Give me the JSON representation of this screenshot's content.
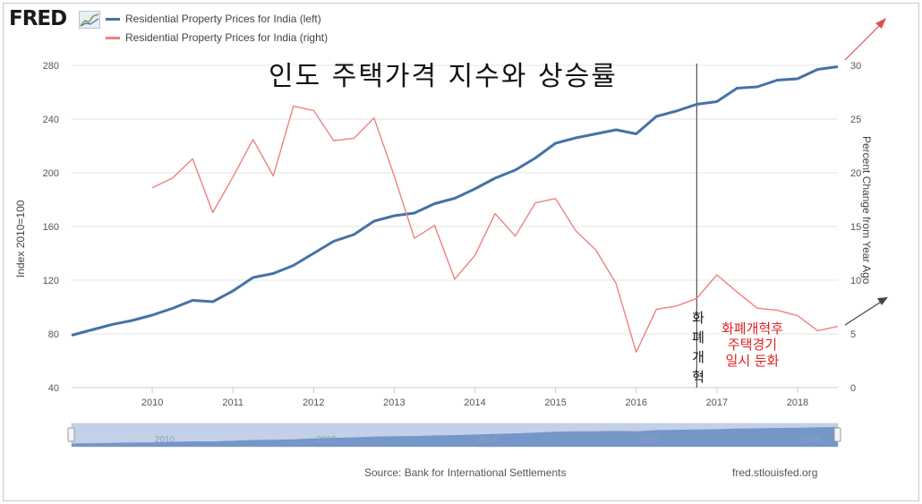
{
  "header": {
    "logo": "FRED"
  },
  "legend": [
    {
      "label": "Residential Property Prices for India (left)",
      "color": "#4572a7"
    },
    {
      "label": "Residential Property Prices for India (right)",
      "color": "#f08080"
    }
  ],
  "overlay": {
    "title": "인도 주택가격 지수와 상승률",
    "vertical_label": [
      "화",
      "폐",
      "개",
      "혁"
    ],
    "annotation": [
      "화폐개혁후",
      "주택경기",
      "일시 둔화"
    ],
    "annotation_color": "#e02020"
  },
  "chart_data": {
    "type": "line",
    "title": "Residential Property Prices for India",
    "ylabel_left": "Index 2010=100",
    "ylabel_right": "Percent Change from Year Ago",
    "ylim_left": [
      40,
      280
    ],
    "yticks_left": [
      40,
      80,
      120,
      160,
      200,
      240,
      280
    ],
    "ylim_right": [
      0,
      30
    ],
    "yticks_right": [
      0,
      5,
      10,
      15,
      20,
      25,
      30
    ],
    "xlim": [
      2009.0,
      2018.5
    ],
    "xticks": [
      2010,
      2011,
      2012,
      2013,
      2014,
      2015,
      2016,
      2017,
      2018
    ],
    "event_line_x": 2016.75,
    "series": [
      {
        "name": "Residential Property Prices for India (left)",
        "axis": "left",
        "color": "#4572a7",
        "x": [
          2009.0,
          2009.25,
          2009.5,
          2009.75,
          2010.0,
          2010.25,
          2010.5,
          2010.75,
          2011.0,
          2011.25,
          2011.5,
          2011.75,
          2012.0,
          2012.25,
          2012.5,
          2012.75,
          2013.0,
          2013.25,
          2013.5,
          2013.75,
          2014.0,
          2014.25,
          2014.5,
          2014.75,
          2015.0,
          2015.25,
          2015.5,
          2015.75,
          2016.0,
          2016.25,
          2016.5,
          2016.75,
          2017.0,
          2017.25,
          2017.5,
          2017.75,
          2018.0,
          2018.25,
          2018.5
        ],
        "values": [
          79,
          83,
          87,
          90,
          94,
          99,
          105,
          104,
          112,
          122,
          125,
          131,
          140,
          149,
          154,
          164,
          168,
          170,
          177,
          181,
          188,
          196,
          202,
          211,
          222,
          226,
          229,
          232,
          229,
          242,
          246,
          251,
          253,
          263,
          264,
          269,
          270,
          277,
          279
        ]
      },
      {
        "name": "Residential Property Prices for India (right)",
        "axis": "right",
        "color": "#f08080",
        "x": [
          2010.0,
          2010.25,
          2010.5,
          2010.75,
          2011.0,
          2011.25,
          2011.5,
          2011.75,
          2012.0,
          2012.25,
          2012.5,
          2012.75,
          2013.0,
          2013.25,
          2013.5,
          2013.75,
          2014.0,
          2014.25,
          2014.5,
          2014.75,
          2015.0,
          2015.25,
          2015.5,
          2015.75,
          2016.0,
          2016.25,
          2016.5,
          2016.75,
          2017.0,
          2017.25,
          2017.5,
          2017.75,
          2018.0,
          2018.25,
          2018.5
        ],
        "values": [
          18.6,
          19.5,
          21.3,
          16.3,
          19.6,
          23.1,
          19.7,
          26.2,
          25.8,
          23.0,
          23.2,
          25.1,
          19.7,
          13.9,
          15.1,
          10.1,
          12.3,
          16.2,
          14.1,
          17.2,
          17.6,
          14.6,
          12.8,
          9.7,
          3.3,
          7.3,
          7.6,
          8.3,
          10.5,
          8.9,
          7.4,
          7.2,
          6.7,
          5.3,
          5.7
        ]
      }
    ]
  },
  "footer": {
    "source": "Source: Bank for International Settlements",
    "site": "fred.stlouisfed.org"
  }
}
